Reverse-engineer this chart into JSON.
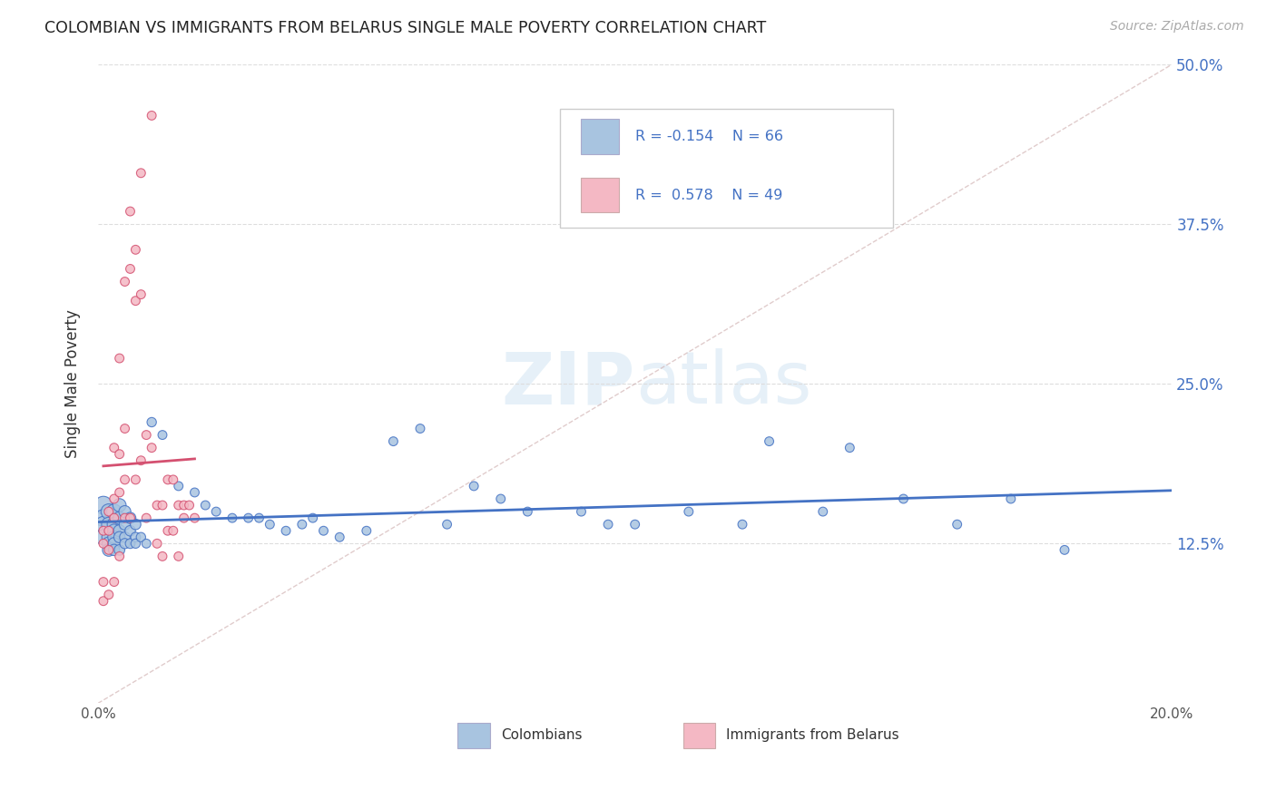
{
  "title": "COLOMBIAN VS IMMIGRANTS FROM BELARUS SINGLE MALE POVERTY CORRELATION CHART",
  "source": "Source: ZipAtlas.com",
  "ylabel": "Single Male Poverty",
  "xlim": [
    0.0,
    0.2
  ],
  "ylim": [
    0.0,
    0.5
  ],
  "watermark": "ZIPatlas",
  "color_colombians": "#a8c4e0",
  "color_belarus": "#f4b8c4",
  "color_trend_colombians": "#4472c4",
  "color_trend_belarus": "#d45070",
  "color_refline": "#ccaaaa",
  "color_grid": "#dddddd",
  "color_right_yticks": "#4472c4",
  "color_legend_text": "#4472c4",
  "colombians_x": [
    0.001,
    0.001,
    0.001,
    0.001,
    0.002,
    0.002,
    0.002,
    0.002,
    0.002,
    0.003,
    0.003,
    0.003,
    0.003,
    0.003,
    0.003,
    0.004,
    0.004,
    0.004,
    0.004,
    0.004,
    0.005,
    0.005,
    0.005,
    0.005,
    0.006,
    0.006,
    0.006,
    0.007,
    0.007,
    0.007,
    0.008,
    0.009,
    0.01,
    0.012,
    0.015,
    0.018,
    0.02,
    0.022,
    0.025,
    0.028,
    0.03,
    0.032,
    0.035,
    0.038,
    0.04,
    0.042,
    0.045,
    0.05,
    0.055,
    0.06,
    0.065,
    0.07,
    0.075,
    0.08,
    0.09,
    0.095,
    0.1,
    0.11,
    0.12,
    0.125,
    0.135,
    0.14,
    0.15,
    0.16,
    0.17,
    0.18
  ],
  "colombians_y": [
    0.155,
    0.145,
    0.14,
    0.13,
    0.15,
    0.14,
    0.13,
    0.125,
    0.12,
    0.15,
    0.14,
    0.135,
    0.13,
    0.125,
    0.12,
    0.155,
    0.145,
    0.135,
    0.13,
    0.12,
    0.15,
    0.14,
    0.13,
    0.125,
    0.145,
    0.135,
    0.125,
    0.14,
    0.13,
    0.125,
    0.13,
    0.125,
    0.22,
    0.21,
    0.17,
    0.165,
    0.155,
    0.15,
    0.145,
    0.145,
    0.145,
    0.14,
    0.135,
    0.14,
    0.145,
    0.135,
    0.13,
    0.135,
    0.205,
    0.215,
    0.14,
    0.17,
    0.16,
    0.15,
    0.15,
    0.14,
    0.14,
    0.15,
    0.14,
    0.205,
    0.15,
    0.2,
    0.16,
    0.14,
    0.16,
    0.12
  ],
  "colombians_size": [
    200,
    180,
    160,
    150,
    150,
    130,
    120,
    110,
    100,
    140,
    120,
    110,
    100,
    90,
    80,
    110,
    100,
    90,
    80,
    70,
    90,
    80,
    70,
    65,
    80,
    70,
    60,
    70,
    60,
    55,
    55,
    50,
    55,
    50,
    50,
    50,
    50,
    50,
    50,
    50,
    50,
    50,
    50,
    50,
    50,
    50,
    50,
    50,
    50,
    50,
    50,
    50,
    50,
    50,
    50,
    50,
    50,
    50,
    50,
    50,
    50,
    50,
    50,
    50,
    50,
    50
  ],
  "belarus_x": [
    0.001,
    0.001,
    0.001,
    0.001,
    0.002,
    0.002,
    0.002,
    0.002,
    0.003,
    0.003,
    0.003,
    0.003,
    0.004,
    0.004,
    0.004,
    0.004,
    0.005,
    0.005,
    0.005,
    0.005,
    0.006,
    0.006,
    0.006,
    0.007,
    0.007,
    0.007,
    0.008,
    0.008,
    0.008,
    0.009,
    0.009,
    0.01,
    0.01,
    0.011,
    0.011,
    0.012,
    0.012,
    0.013,
    0.013,
    0.014,
    0.014,
    0.015,
    0.015,
    0.016,
    0.016,
    0.017,
    0.018
  ],
  "belarus_y": [
    0.135,
    0.125,
    0.095,
    0.08,
    0.15,
    0.135,
    0.12,
    0.085,
    0.2,
    0.16,
    0.145,
    0.095,
    0.27,
    0.195,
    0.165,
    0.115,
    0.33,
    0.215,
    0.175,
    0.145,
    0.385,
    0.34,
    0.145,
    0.355,
    0.315,
    0.175,
    0.415,
    0.32,
    0.19,
    0.21,
    0.145,
    0.46,
    0.2,
    0.155,
    0.125,
    0.155,
    0.115,
    0.175,
    0.135,
    0.175,
    0.135,
    0.155,
    0.115,
    0.155,
    0.145,
    0.155,
    0.145
  ],
  "belarus_size": [
    50,
    50,
    50,
    50,
    50,
    50,
    50,
    50,
    50,
    50,
    50,
    50,
    50,
    50,
    50,
    50,
    50,
    50,
    50,
    50,
    50,
    50,
    50,
    50,
    50,
    50,
    50,
    50,
    50,
    50,
    50,
    50,
    50,
    50,
    50,
    50,
    50,
    50,
    50,
    50,
    50,
    50,
    50,
    50,
    50,
    50,
    50
  ]
}
